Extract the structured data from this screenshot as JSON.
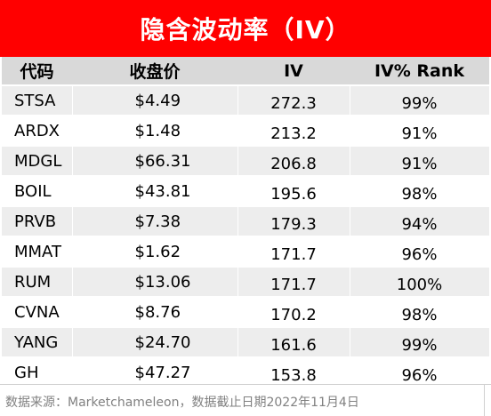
{
  "title": "隐含波动率（IV）",
  "columns": {
    "ticker": "代码",
    "price": "收盘价",
    "iv": "IV",
    "rank": "IV% Rank"
  },
  "rows": [
    {
      "ticker": "STSA",
      "price": "$4.49",
      "iv": "272.3",
      "rank": "99%"
    },
    {
      "ticker": "ARDX",
      "price": "$1.48",
      "iv": "213.2",
      "rank": "91%"
    },
    {
      "ticker": "MDGL",
      "price": "$66.31",
      "iv": "206.8",
      "rank": "91%"
    },
    {
      "ticker": "BOIL",
      "price": "$43.81",
      "iv": "195.6",
      "rank": "98%"
    },
    {
      "ticker": "PRVB",
      "price": "$7.38",
      "iv": "179.3",
      "rank": "94%"
    },
    {
      "ticker": "MMAT",
      "price": "$1.62",
      "iv": "171.7",
      "rank": "96%"
    },
    {
      "ticker": "RUM",
      "price": "$13.06",
      "iv": "171.7",
      "rank": "100%"
    },
    {
      "ticker": "CVNA",
      "price": "$8.76",
      "iv": "170.2",
      "rank": "98%"
    },
    {
      "ticker": "YANG",
      "price": "$24.70",
      "iv": "161.6",
      "rank": "99%"
    },
    {
      "ticker": "GH",
      "price": "$47.27",
      "iv": "153.8",
      "rank": "96%"
    }
  ],
  "footer": "数据来源：Marketchameleon，数据截止日期2022年11月4日",
  "colors": {
    "title_background": "#ff0000",
    "header_background": "#d9d9d9",
    "stripe_background": "#ededed"
  }
}
